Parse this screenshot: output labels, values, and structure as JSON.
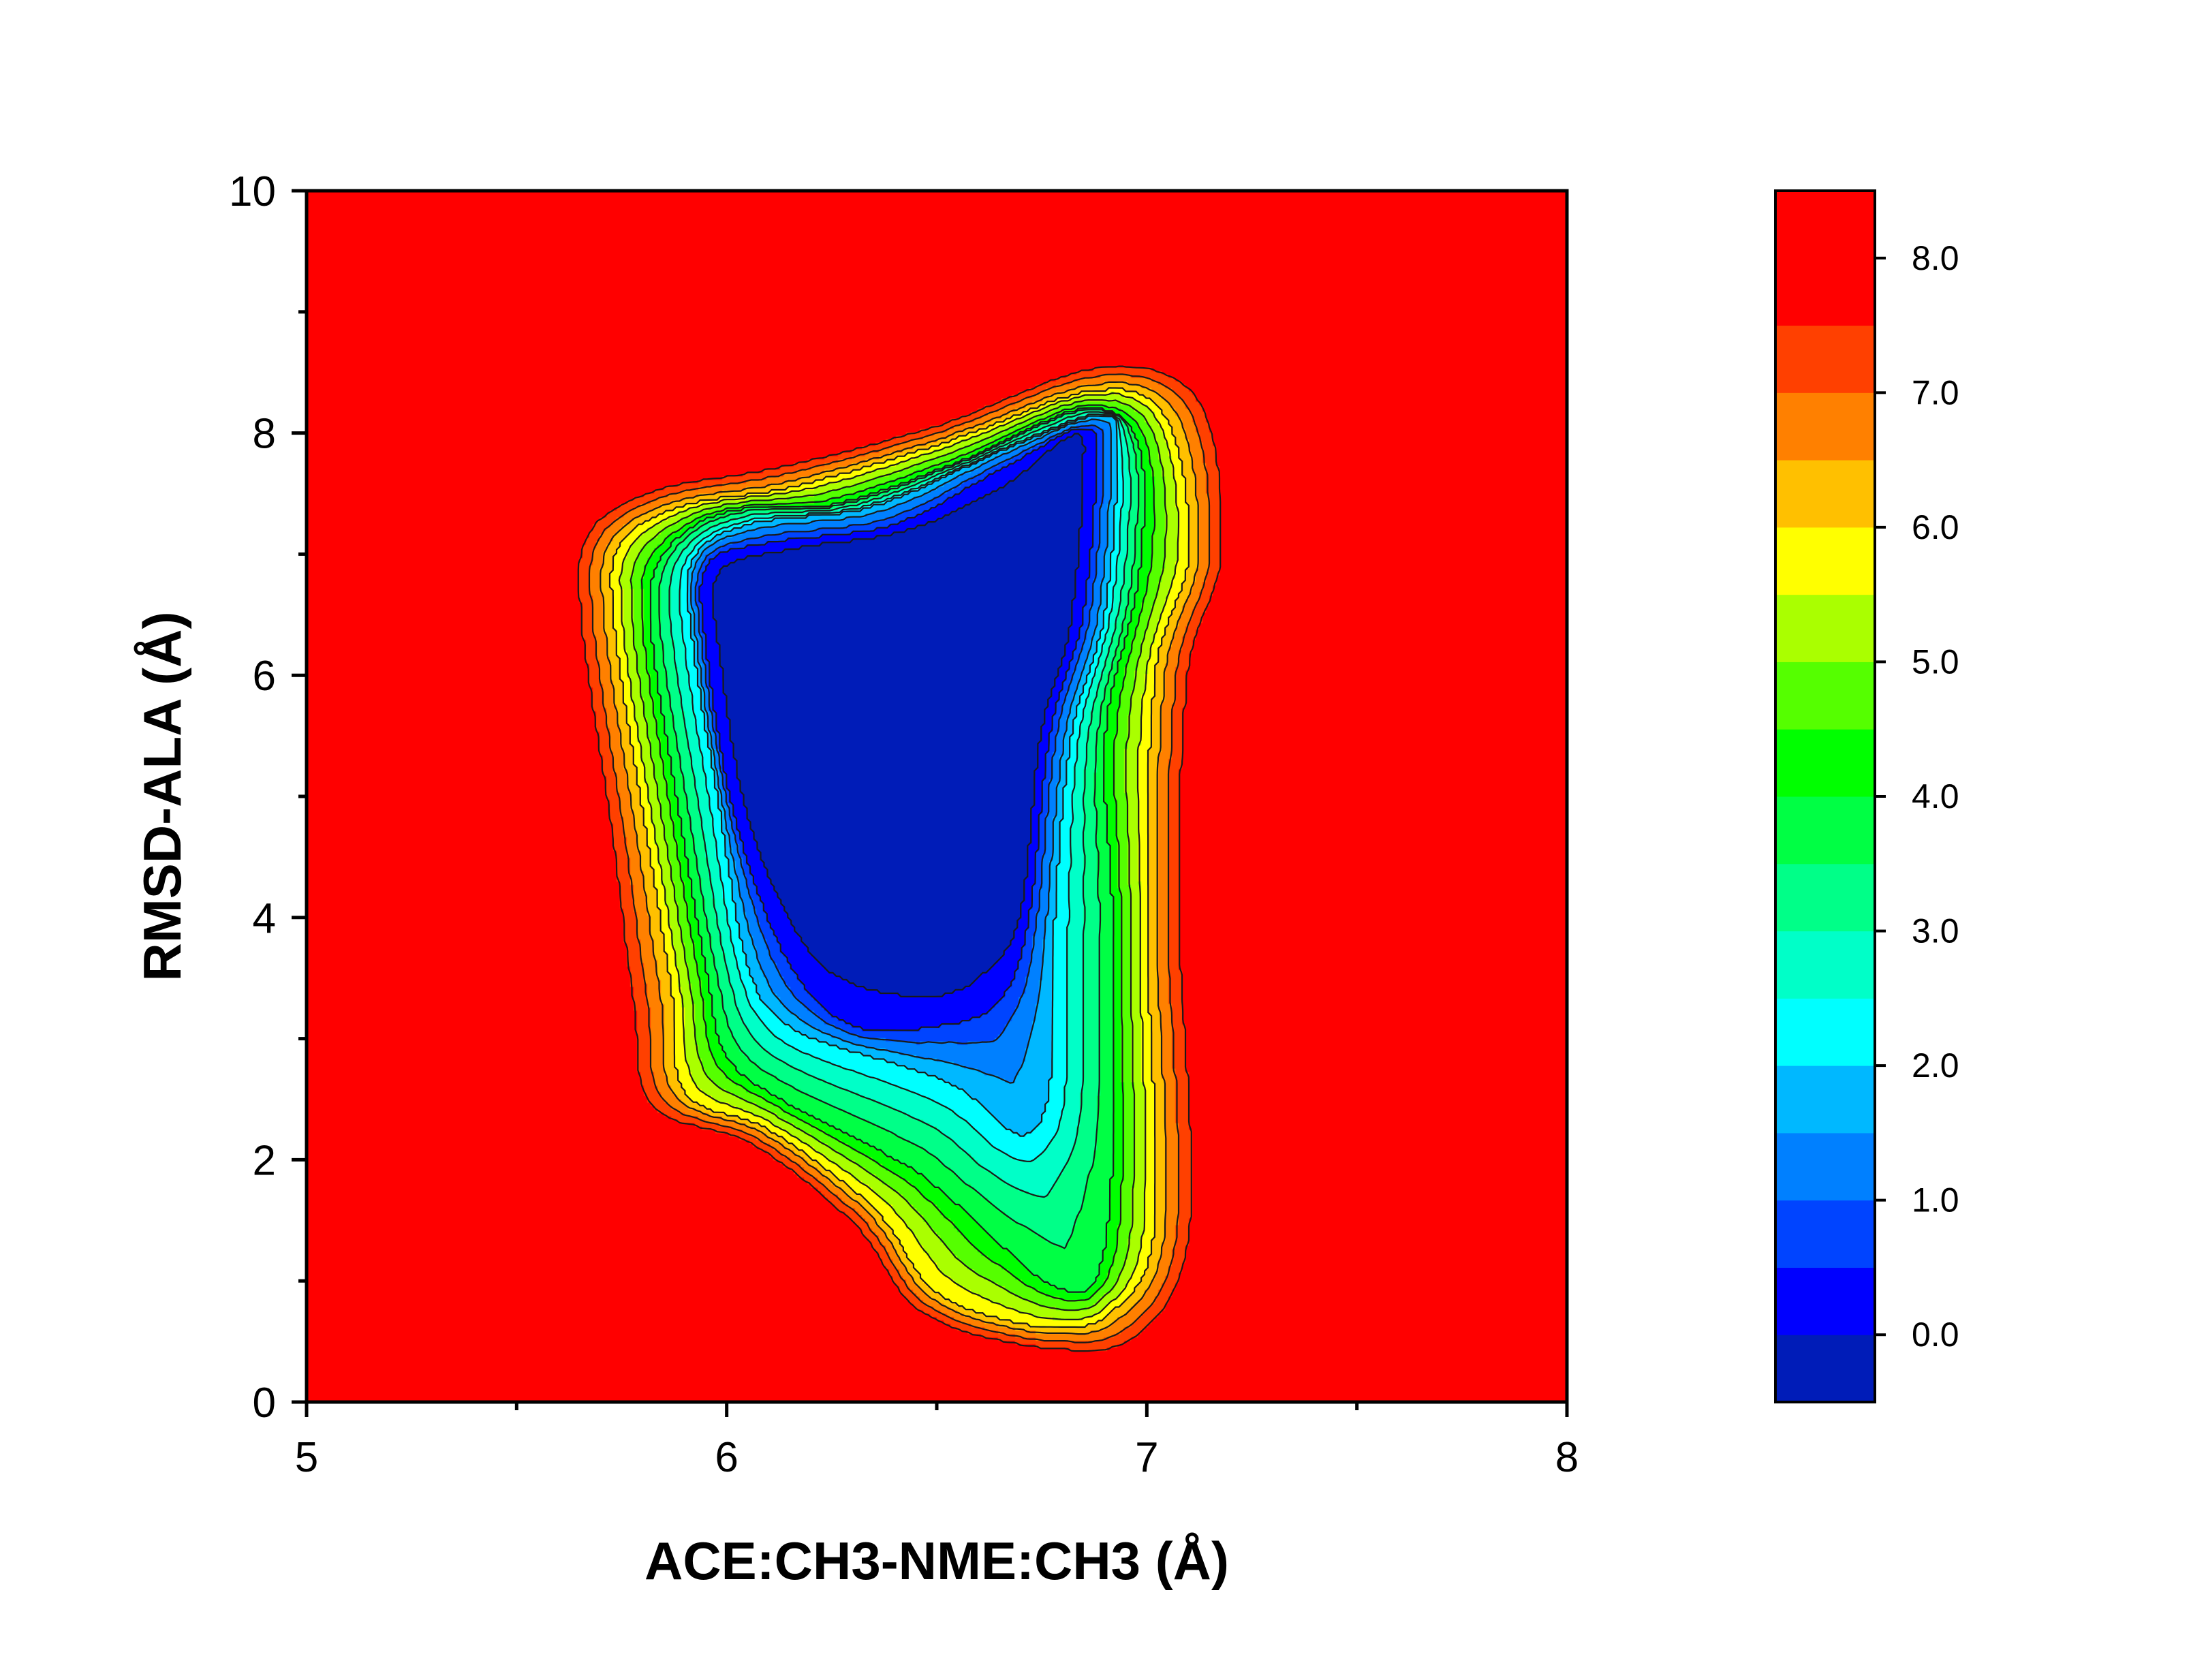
{
  "chart_data": {
    "type": "heatmap",
    "subtype": "filled-contour free energy landscape",
    "title": "",
    "xlabel": "ACE:CH3-NME:CH3 (Å)",
    "ylabel": "RMSD-ALA (Å)",
    "xlim": [
      5,
      8
    ],
    "ylim": [
      0,
      10
    ],
    "x_ticks": [
      "5",
      "6",
      "7",
      "8"
    ],
    "y_ticks": [
      "0",
      "2",
      "4",
      "6",
      "8",
      "10"
    ],
    "grid": false,
    "colorbar": {
      "range": [
        -0.5,
        8.5
      ],
      "tick_values": [
        0.0,
        1.0,
        2.0,
        3.0,
        4.0,
        5.0,
        6.0,
        7.0,
        8.0
      ],
      "tick_labels": [
        "0.0",
        "1.0",
        "2.0",
        "3.0",
        "4.0",
        "5.0",
        "6.0",
        "7.0",
        "8.0"
      ],
      "levels": [
        -0.5,
        0.0,
        0.5,
        1.0,
        1.5,
        2.0,
        2.5,
        3.0,
        3.5,
        4.0,
        4.5,
        5.0,
        5.5,
        6.0,
        6.5,
        7.0,
        7.5,
        8.5
      ],
      "colors": [
        "#001cb8",
        "#0000ff",
        "#0044ff",
        "#0080ff",
        "#00b8ff",
        "#00ffff",
        "#00ffc8",
        "#00ff88",
        "#00ff44",
        "#00ff00",
        "#55ff00",
        "#aaff00",
        "#ffff00",
        "#ffc000",
        "#ff8000",
        "#ff4000",
        "#ff0000"
      ]
    },
    "surface": {
      "background_value": 8.5,
      "minimum_region_value": -0.3,
      "contours": [
        {
          "level": 8.0,
          "path": [
            [
              5.65,
              7.2
            ],
            [
              5.8,
              7.55
            ],
            [
              6.1,
              7.75
            ],
            [
              6.5,
              8.1
            ],
            [
              6.9,
              8.6
            ],
            [
              7.15,
              8.3
            ],
            [
              7.2,
              7.0
            ],
            [
              7.12,
              6.0
            ],
            [
              7.1,
              4.0
            ],
            [
              7.13,
              1.5
            ],
            [
              7.0,
              0.5
            ],
            [
              6.75,
              0.4
            ],
            [
              6.45,
              0.7
            ],
            [
              6.3,
              1.4
            ],
            [
              6.05,
              2.1
            ],
            [
              5.8,
              2.4
            ],
            [
              5.75,
              3.3
            ],
            [
              5.7,
              4.8
            ],
            [
              5.63,
              6.5
            ]
          ]
        },
        {
          "level": 6.0,
          "path": [
            [
              5.75,
              7.1
            ],
            [
              5.9,
              7.4
            ],
            [
              6.15,
              7.55
            ],
            [
              6.5,
              7.9
            ],
            [
              6.88,
              8.35
            ],
            [
              7.05,
              8.1
            ],
            [
              7.1,
              7.0
            ],
            [
              7.02,
              6.0
            ],
            [
              7.0,
              4.0
            ],
            [
              7.02,
              1.5
            ],
            [
              6.92,
              0.75
            ],
            [
              6.75,
              0.62
            ],
            [
              6.5,
              0.9
            ],
            [
              6.35,
              1.6
            ],
            [
              6.1,
              2.25
            ],
            [
              5.9,
              2.55
            ],
            [
              5.87,
              3.4
            ],
            [
              5.8,
              4.9
            ],
            [
              5.73,
              6.5
            ]
          ]
        },
        {
          "level": 4.0,
          "path": [
            [
              5.85,
              7.0
            ],
            [
              6.0,
              7.35
            ],
            [
              6.25,
              7.4
            ],
            [
              6.55,
              7.75
            ],
            [
              6.85,
              8.2
            ],
            [
              6.98,
              7.9
            ],
            [
              6.98,
              6.8
            ],
            [
              6.9,
              5.5
            ],
            [
              6.92,
              4.0
            ],
            [
              6.92,
              2.0
            ],
            [
              6.88,
              1.0
            ],
            [
              6.78,
              0.95
            ],
            [
              6.65,
              1.3
            ],
            [
              6.45,
              1.9
            ],
            [
              6.15,
              2.45
            ],
            [
              6.0,
              2.85
            ],
            [
              5.95,
              3.6
            ],
            [
              5.88,
              5.0
            ],
            [
              5.82,
              6.4
            ]
          ]
        },
        {
          "level": 2.0,
          "path": [
            [
              5.92,
              6.95
            ],
            [
              6.05,
              7.25
            ],
            [
              6.35,
              7.4
            ],
            [
              6.65,
              7.85
            ],
            [
              6.9,
              8.15
            ],
            [
              6.93,
              7.8
            ],
            [
              6.9,
              6.5
            ],
            [
              6.82,
              5.5
            ],
            [
              6.78,
              4.0
            ],
            [
              6.77,
              2.6
            ],
            [
              6.7,
              2.2
            ],
            [
              6.55,
              2.6
            ],
            [
              6.35,
              2.85
            ],
            [
              6.15,
              3.1
            ],
            [
              6.05,
              3.6
            ],
            [
              5.98,
              5.0
            ],
            [
              5.92,
              6.3
            ]
          ]
        },
        {
          "level": 0.5,
          "path": [
            [
              5.95,
              6.9
            ],
            [
              6.1,
              7.1
            ],
            [
              6.4,
              7.25
            ],
            [
              6.65,
              7.7
            ],
            [
              6.85,
              8.05
            ],
            [
              6.88,
              7.7
            ],
            [
              6.85,
              6.5
            ],
            [
              6.77,
              5.5
            ],
            [
              6.72,
              4.0
            ],
            [
              6.65,
              3.3
            ],
            [
              6.5,
              3.1
            ],
            [
              6.3,
              3.1
            ],
            [
              6.15,
              3.6
            ],
            [
              6.02,
              4.8
            ],
            [
              5.95,
              6.2
            ]
          ]
        },
        {
          "level": 0.0,
          "path": [
            [
              5.98,
              6.85
            ],
            [
              6.15,
              7.05
            ],
            [
              6.42,
              7.2
            ],
            [
              6.65,
              7.55
            ],
            [
              6.83,
              8.0
            ],
            [
              6.85,
              7.6
            ],
            [
              6.82,
              6.4
            ],
            [
              6.75,
              5.5
            ],
            [
              6.7,
              4.0
            ],
            [
              6.6,
              3.5
            ],
            [
              6.48,
              3.35
            ],
            [
              6.3,
              3.45
            ],
            [
              6.18,
              3.8
            ],
            [
              6.05,
              4.8
            ],
            [
              5.98,
              6.2
            ]
          ]
        }
      ]
    }
  }
}
